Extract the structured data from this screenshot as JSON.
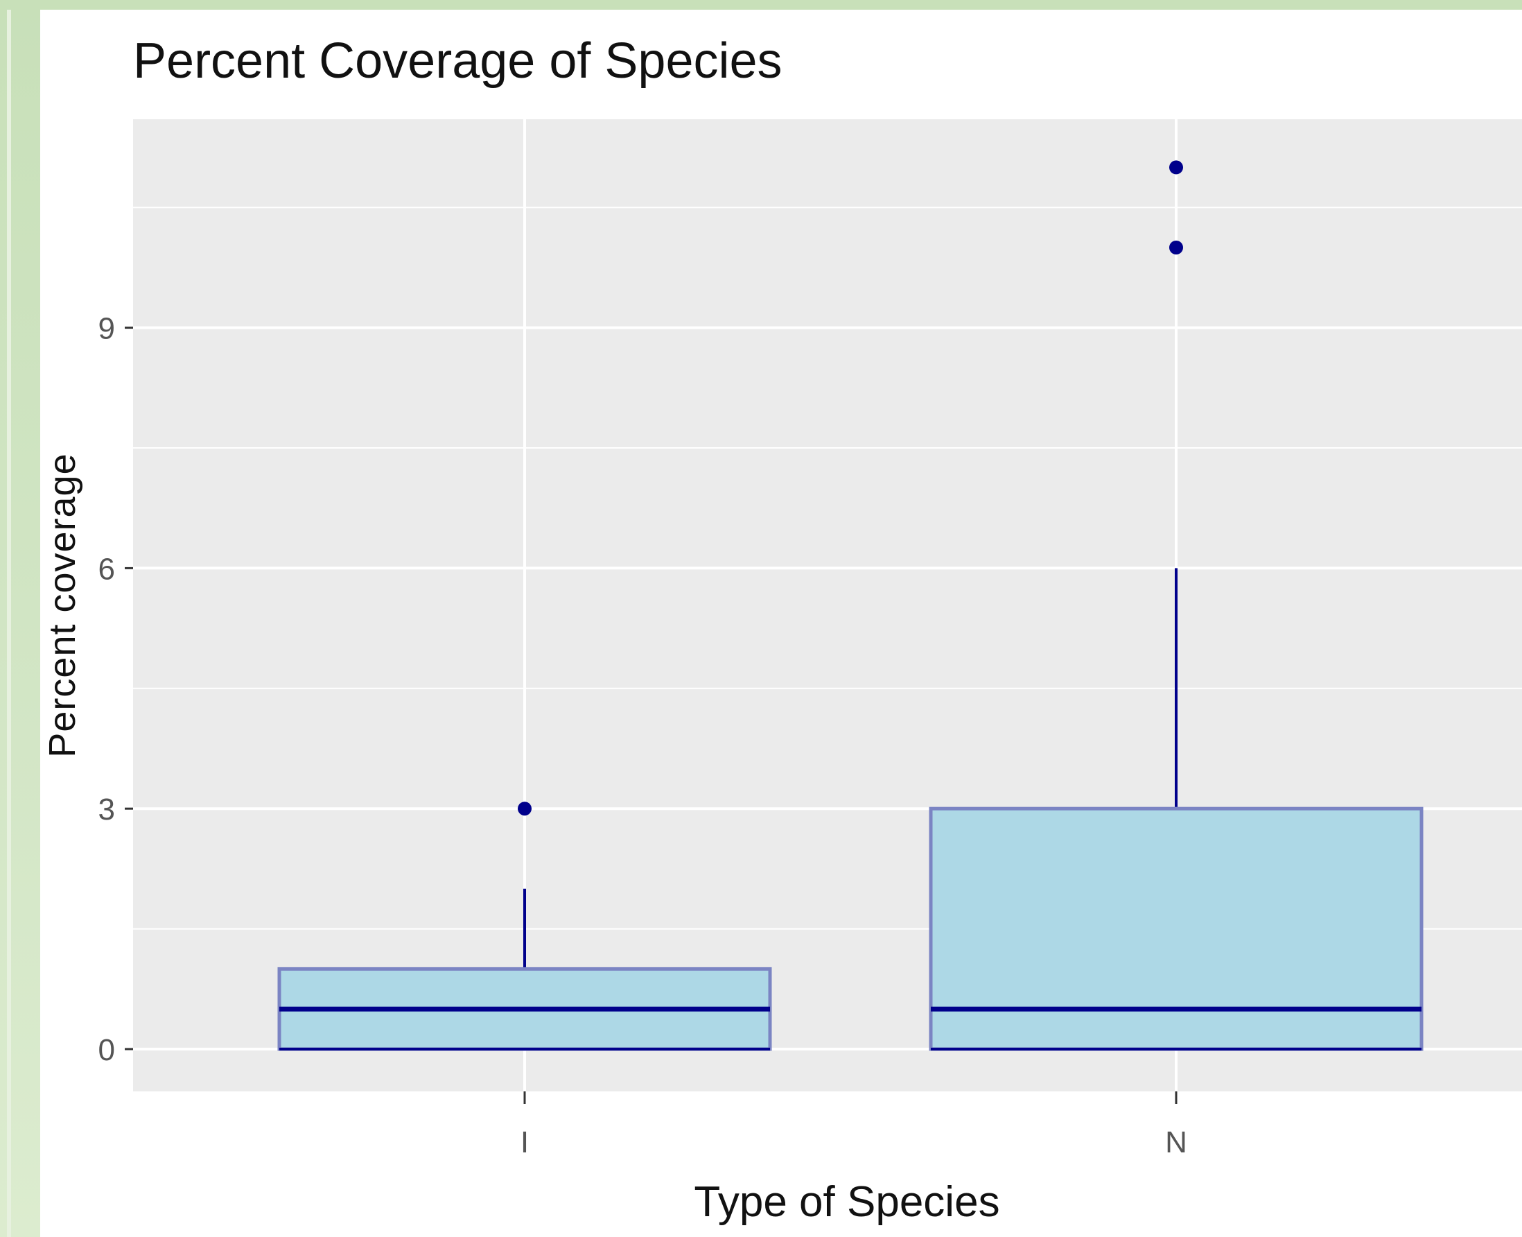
{
  "chart_data": {
    "type": "boxplot",
    "title": "Percent Coverage of Species",
    "xlabel": "Type of Species",
    "ylabel": "Percent coverage",
    "categories": [
      "I",
      "N"
    ],
    "ylim": [
      -0.5,
      11.6
    ],
    "yticks": [
      0,
      3,
      6,
      9
    ],
    "ytick_labels": [
      "0",
      "3",
      "6",
      "9"
    ],
    "grid": true,
    "boxes": [
      {
        "category": "I",
        "min": 0,
        "q1": 0,
        "median": 0.5,
        "q3": 1,
        "max": 2,
        "outliers": [
          3
        ]
      },
      {
        "category": "N",
        "min": 0,
        "q1": 0,
        "median": 0.5,
        "q3": 3,
        "max": 6,
        "outliers": [
          10,
          11
        ]
      }
    ],
    "colors": {
      "box_fill": "#add8e6",
      "box_border": "#7b84c3",
      "line": "#00008b",
      "outlier": "#00008b",
      "panel_bg": "#ebebeb",
      "grid": "#ffffff"
    }
  }
}
